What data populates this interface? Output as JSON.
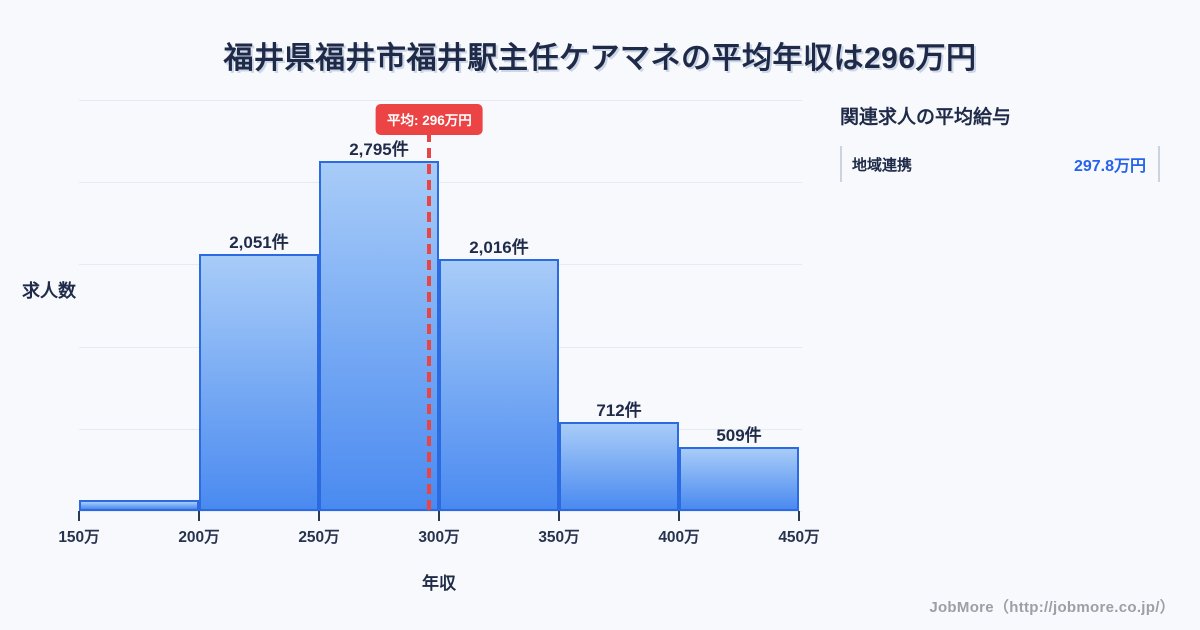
{
  "title": "福井県福井市福井駅主任ケアマネの平均年収は296万円",
  "chart_data": {
    "type": "bar",
    "title": "福井県福井市福井駅主任ケアマネの平均年収は296万円",
    "xlabel": "年収",
    "ylabel": "求人数",
    "categories": [
      "150万-200万",
      "200万-250万",
      "250万-300万",
      "300万-350万",
      "350万-400万",
      "400万-450万"
    ],
    "bin_edge_labels": [
      "150万",
      "200万",
      "250万",
      "300万",
      "350万",
      "400万",
      "450万"
    ],
    "bars": [
      {
        "label": "",
        "value": 90
      },
      {
        "label": "2,051件",
        "value": 2051
      },
      {
        "label": "2,795件",
        "value": 2795
      },
      {
        "label": "2,016件",
        "value": 2016
      },
      {
        "label": "712件",
        "value": 712
      },
      {
        "label": "509件",
        "value": 509
      }
    ],
    "ylim": [
      0,
      3283
    ],
    "x_range": [
      150,
      450
    ],
    "grid": true,
    "average_line": {
      "label": "平均: 296万円",
      "x_value": 296
    }
  },
  "side_panel": {
    "heading": "関連求人の平均給与",
    "rows": [
      {
        "label": "地域連携",
        "value": "297.8万円"
      }
    ]
  },
  "footer": "JobMore（http://jobmore.co.jp/）",
  "colors": {
    "background": "#f8f9fc",
    "bar_fill_top": "#a8ccf8",
    "bar_fill_bottom": "#4a8af0",
    "bar_border": "#2b6ae0",
    "average_red": "#e84545",
    "text_dark": "#1f2b49",
    "value_blue": "#2563eb",
    "gridline": "#e6eaf2",
    "footer_gray": "#9b9fa6"
  }
}
